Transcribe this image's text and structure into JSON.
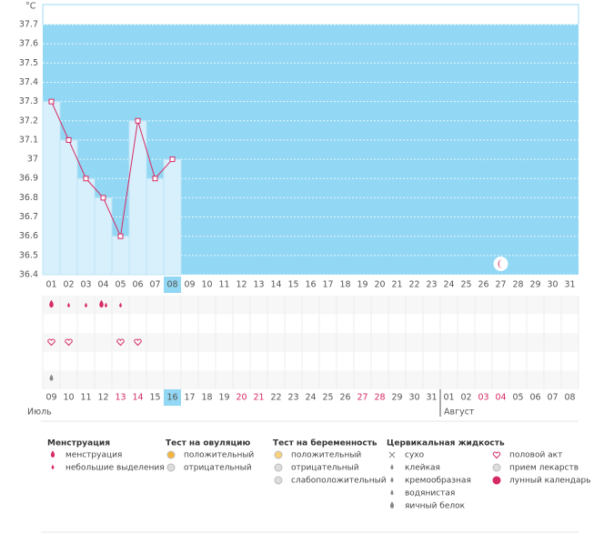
{
  "chart_data": {
    "type": "line",
    "y_unit": "°C",
    "ylim": [
      36.4,
      37.7
    ],
    "yticks": [
      36.4,
      36.5,
      36.6,
      36.7,
      36.8,
      36.9,
      37,
      37.1,
      37.2,
      37.3,
      37.4,
      37.5,
      37.6,
      37.7
    ],
    "grid": true,
    "categories": [
      "01",
      "02",
      "03",
      "04",
      "05",
      "06",
      "07",
      "08",
      "09",
      "10",
      "11",
      "12",
      "13",
      "14",
      "15",
      "16",
      "17",
      "18",
      "19",
      "20",
      "21",
      "22",
      "23",
      "24",
      "25",
      "26",
      "27",
      "28",
      "29",
      "30",
      "31"
    ],
    "values": [
      37.3,
      37.1,
      36.9,
      36.8,
      36.6,
      37.2,
      36.9,
      37,
      null,
      null,
      null,
      null,
      null,
      null,
      null,
      null,
      null,
      null,
      null,
      null,
      null,
      null,
      null,
      null,
      null,
      null,
      null,
      null,
      null,
      null,
      null
    ],
    "color": "#d62a64",
    "bar_color": "#d8f0fc",
    "background": "#92d7f3",
    "highlight_index": 7,
    "moon_index": 26,
    "dates": [
      "09",
      "10",
      "11",
      "12",
      "13",
      "14",
      "15",
      "16",
      "17",
      "18",
      "19",
      "20",
      "21",
      "22",
      "23",
      "24",
      "25",
      "26",
      "27",
      "28",
      "29",
      "30",
      "31",
      "01",
      "02",
      "03",
      "04",
      "05",
      "06",
      "07",
      "08"
    ],
    "red_dates": [
      4,
      5,
      11,
      12,
      18,
      19,
      25,
      26
    ],
    "months": [
      "Июль",
      "Август"
    ],
    "menstruation_heavy": [
      0,
      3
    ],
    "menstruation_light": [
      1,
      2,
      3,
      4
    ],
    "sex_days": [
      0,
      1,
      4,
      5
    ],
    "fluid_days": [
      0
    ]
  },
  "legend": [
    {
      "title": "Менструация",
      "items": [
        "менструация",
        "небольшие выделения"
      ]
    },
    {
      "title": "Тест на овуляцию",
      "items": [
        "положительный",
        "отрицательный"
      ]
    },
    {
      "title": "Тест на беременность",
      "items": [
        "положительный",
        "отрицательный",
        "слабоположительный"
      ]
    },
    {
      "title": "Цервикальная жидкость",
      "items": [
        "сухо",
        "клейкая",
        "кремообразная",
        "водянистая",
        "яичный белок"
      ]
    },
    {
      "items": [
        "половой акт",
        "прием лекарств",
        "лунный календарь"
      ]
    }
  ]
}
